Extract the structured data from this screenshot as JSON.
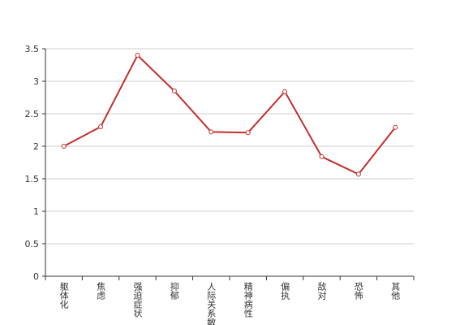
{
  "chart_data": {
    "type": "line",
    "categories": [
      "躯体化",
      "焦虑",
      "强迫症状",
      "抑郁",
      "人际关系敏感",
      "精神病性",
      "偏执",
      "敌对",
      "恐怖",
      "其他"
    ],
    "series": [
      {
        "color": "#c0302e",
        "values": [
          2.0,
          2.3,
          3.4,
          2.85,
          2.22,
          2.21,
          2.84,
          1.84,
          1.57,
          2.29
        ]
      }
    ],
    "ylim": [
      0,
      3.5
    ],
    "yticks": [
      0,
      0.5,
      1,
      1.5,
      2,
      2.5,
      3,
      3.5
    ],
    "grid": true
  }
}
